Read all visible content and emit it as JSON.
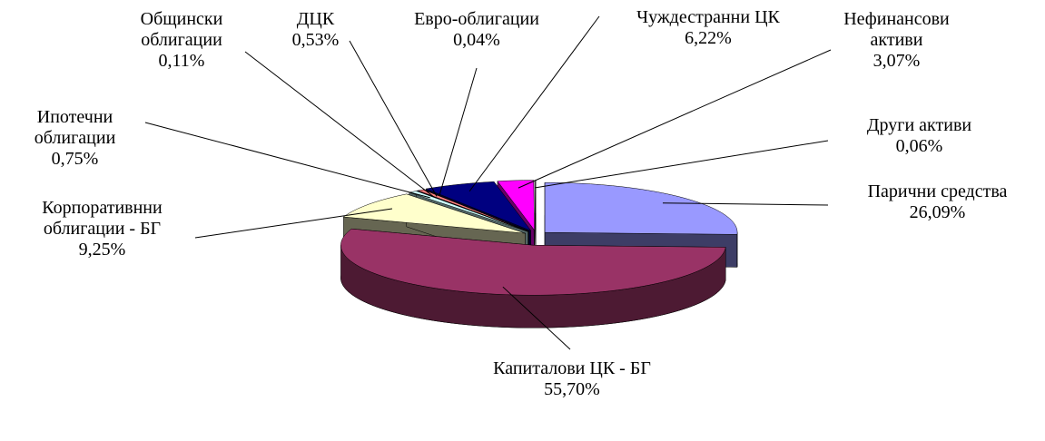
{
  "chart_data": {
    "type": "pie3d",
    "categories": [
      "Парични средства",
      "Капиталови ЦК - БГ",
      "Корпоративнни облигации - БГ",
      "Ипотечни облигации",
      "Общински облигации",
      "ДЦК",
      "Евро-облигации",
      "Чуждестранни ЦК",
      "Нефинансови активи",
      "Други активи"
    ],
    "values": [
      26.09,
      55.7,
      9.25,
      0.75,
      0.11,
      0.53,
      0.04,
      6.22,
      3.07,
      0.06
    ],
    "value_labels": [
      "26,09%",
      "55,70%",
      "9,25%",
      "0,75%",
      "0,11%",
      "0,53%",
      "0,04%",
      "6,22%",
      "3,07%",
      "0,06%"
    ],
    "colors": [
      "#9999ff",
      "#993366",
      "#ffffcc",
      "#ccffff",
      "#660066",
      "#ff8080",
      "#0066cc",
      "#000080",
      "#ff00ff",
      "#ffffff"
    ]
  }
}
